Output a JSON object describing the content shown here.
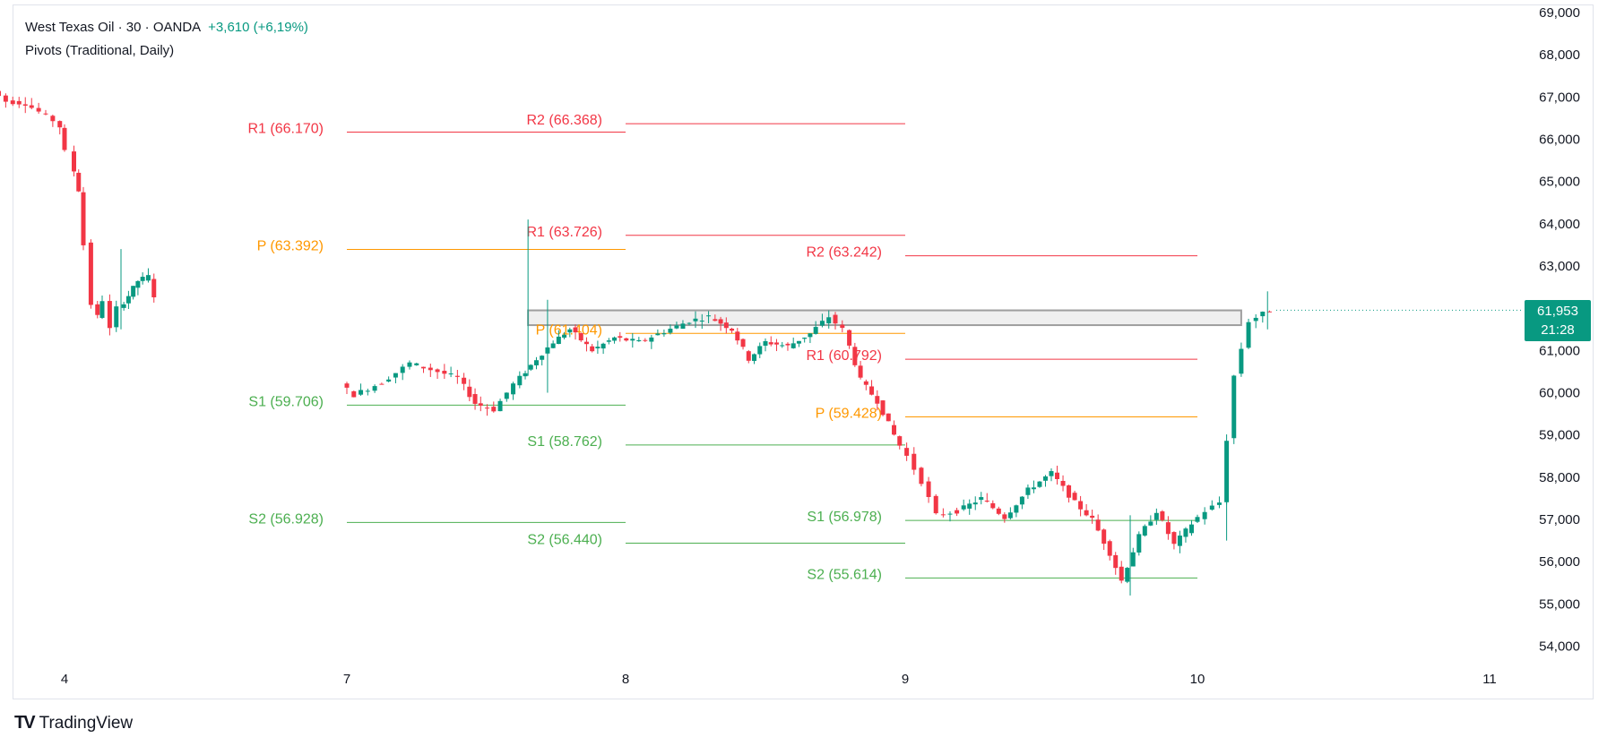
{
  "header": {
    "symbol_line": "West Texas Oil · 30 · OANDA",
    "change": "+3,610 (+6,19%)",
    "indicator": "Pivots (Traditional, Daily)"
  },
  "brand": {
    "name": "TradingView",
    "logo_text": "TV"
  },
  "price_tag": {
    "price": "61,953",
    "countdown": "21:28",
    "color": "#089981"
  },
  "colors": {
    "up": "#089981",
    "down": "#f23645",
    "resistance": "#f23645",
    "support": "#4caf50",
    "pivot": "#ff9800"
  },
  "chart_data": {
    "type": "candlestick",
    "y_axis": {
      "range": [
        53500,
        69200
      ],
      "ticks": [
        "69,000",
        "68,000",
        "67,000",
        "66,000",
        "65,000",
        "64,000",
        "63,000",
        "62,000",
        "61,000",
        "60,000",
        "59,000",
        "58,000",
        "57,000",
        "56,000",
        "55,000",
        "54,000"
      ],
      "tick_values": [
        69000,
        68000,
        67000,
        66000,
        65000,
        64000,
        63000,
        62000,
        61000,
        60000,
        59000,
        58000,
        57000,
        56000,
        55000,
        54000
      ]
    },
    "x_axis": {
      "range": [
        3.2,
        11.35
      ],
      "ticks": [
        {
          "label": "4",
          "value": 4
        },
        {
          "label": "7",
          "value": 7
        },
        {
          "label": "8",
          "value": 8
        },
        {
          "label": "9",
          "value": 9
        },
        {
          "label": "10",
          "value": 10
        },
        {
          "label": "11",
          "value": 11
        }
      ]
    },
    "resistance_zone": {
      "x_start": 7.65,
      "x_end": 10.15,
      "low": 61600,
      "high": 61950
    },
    "pivot_sessions": [
      {
        "x_start": 7,
        "x_end": 8,
        "levels": [
          {
            "label": "R1 (66.170)",
            "value": 66170,
            "kind": "resistance"
          },
          {
            "label": "P (63.392)",
            "value": 63392,
            "kind": "pivot"
          },
          {
            "label": "S1 (59.706)",
            "value": 59706,
            "kind": "support"
          },
          {
            "label": "S2 (56.928)",
            "value": 56928,
            "kind": "support"
          }
        ]
      },
      {
        "x_start": 8,
        "x_end": 9,
        "levels": [
          {
            "label": "R2 (66.368)",
            "value": 66368,
            "kind": "resistance"
          },
          {
            "label": "R1 (63.726)",
            "value": 63726,
            "kind": "resistance"
          },
          {
            "label": "P (61.404)",
            "value": 61404,
            "kind": "pivot"
          },
          {
            "label": "S1 (58.762)",
            "value": 58762,
            "kind": "support"
          },
          {
            "label": "S2 (56.440)",
            "value": 56440,
            "kind": "support"
          }
        ]
      },
      {
        "x_start": 9,
        "x_end": 10,
        "levels": [
          {
            "label": "R2 (63.242)",
            "value": 63242,
            "kind": "resistance"
          },
          {
            "label": "R1 (60.792)",
            "value": 60792,
            "kind": "resistance"
          },
          {
            "label": "P (59.428)",
            "value": 59428,
            "kind": "pivot"
          },
          {
            "label": "S1 (56.978)",
            "value": 56978,
            "kind": "support"
          },
          {
            "label": "S2 (55.614)",
            "value": 55614,
            "kind": "support"
          }
        ]
      }
    ],
    "price_path": [
      [
        3.2,
        67000
      ],
      [
        3.3,
        67150
      ],
      [
        3.45,
        66900
      ],
      [
        3.65,
        66850
      ],
      [
        3.8,
        66650
      ],
      [
        3.95,
        66450
      ],
      [
        4.0,
        66300
      ],
      [
        4.1,
        65700
      ],
      [
        4.2,
        64800
      ],
      [
        4.28,
        63500
      ],
      [
        4.35,
        62100
      ],
      [
        4.4,
        61800
      ],
      [
        4.48,
        62200
      ],
      [
        4.55,
        61500
      ],
      [
        4.63,
        62000
      ],
      [
        4.73,
        62300
      ],
      [
        4.83,
        62650
      ],
      [
        4.95,
        62750
      ],
      [
        4.98,
        62300
      ],
      [
        7.0,
        60200
      ],
      [
        7.05,
        59950
      ],
      [
        7.15,
        60250
      ],
      [
        7.25,
        60700
      ],
      [
        7.35,
        60500
      ],
      [
        7.42,
        60350
      ],
      [
        7.48,
        59750
      ],
      [
        7.55,
        59600
      ],
      [
        7.62,
        60200
      ],
      [
        7.7,
        60800
      ],
      [
        7.76,
        61200
      ],
      [
        7.82,
        61500
      ],
      [
        7.9,
        61000
      ],
      [
        7.98,
        61300
      ],
      [
        8.07,
        61200
      ],
      [
        8.16,
        61450
      ],
      [
        8.25,
        61700
      ],
      [
        8.32,
        61800
      ],
      [
        8.4,
        61500
      ],
      [
        8.46,
        60800
      ],
      [
        8.52,
        61200
      ],
      [
        8.6,
        61100
      ],
      [
        8.68,
        61400
      ],
      [
        8.75,
        61800
      ],
      [
        8.8,
        61500
      ],
      [
        8.86,
        60300
      ],
      [
        8.92,
        59800
      ],
      [
        8.98,
        59000
      ],
      [
        9.03,
        58500
      ],
      [
        9.08,
        57900
      ],
      [
        9.13,
        57100
      ],
      [
        9.2,
        57200
      ],
      [
        9.28,
        57500
      ],
      [
        9.36,
        57050
      ],
      [
        9.44,
        57700
      ],
      [
        9.52,
        58100
      ],
      [
        9.6,
        57400
      ],
      [
        9.66,
        57000
      ],
      [
        9.72,
        56200
      ],
      [
        9.76,
        55550
      ],
      [
        9.82,
        56600
      ],
      [
        9.88,
        57200
      ],
      [
        9.94,
        56400
      ],
      [
        10.0,
        56900
      ],
      [
        10.05,
        57200
      ],
      [
        10.1,
        57400
      ],
      [
        10.15,
        60400
      ],
      [
        10.2,
        61700
      ],
      [
        10.27,
        61950
      ]
    ],
    "notable_wicks": [
      {
        "x": 4.6,
        "high": 63400,
        "low": 61500
      },
      {
        "x": 7.65,
        "high": 64100,
        "low": 60400
      },
      {
        "x": 7.72,
        "high": 62200,
        "low": 60000
      },
      {
        "x": 9.77,
        "high": 57100,
        "low": 55200
      },
      {
        "x": 10.1,
        "high": 58100,
        "low": 56500
      },
      {
        "x": 10.24,
        "high": 62400,
        "low": 61500
      }
    ]
  }
}
